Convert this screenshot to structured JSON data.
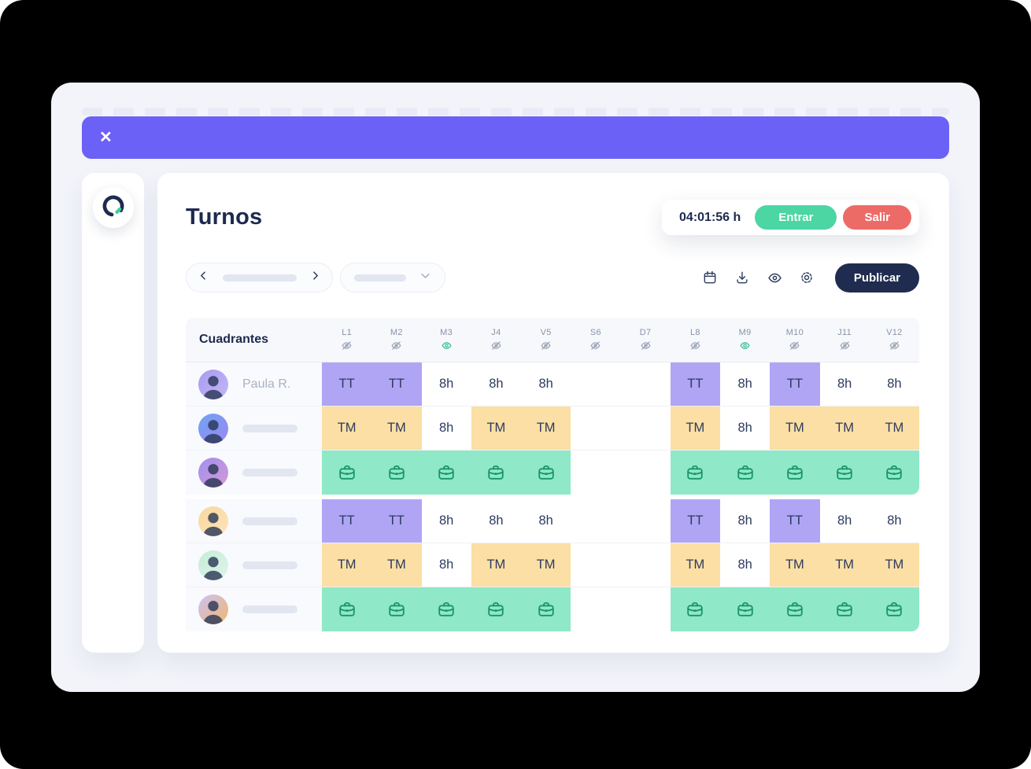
{
  "topbar": {
    "close_icon": "✕"
  },
  "sidebar": {
    "logo_icon": "brand-ring-icon"
  },
  "page": {
    "title": "Turnos"
  },
  "time_tracker": {
    "time": "04:01:56 h",
    "clock_in_label": "Entrar",
    "clock_out_label": "Salir"
  },
  "toolbar": {
    "publish_label": "Publicar",
    "icons": [
      "calendar-icon",
      "download-icon",
      "eye-icon",
      "settings-icon"
    ]
  },
  "table": {
    "corner_label": "Cuadrantes",
    "columns": [
      {
        "label": "L1",
        "eye": "hidden"
      },
      {
        "label": "M2",
        "eye": "hidden"
      },
      {
        "label": "M3",
        "eye": "visible"
      },
      {
        "label": "J4",
        "eye": "hidden"
      },
      {
        "label": "V5",
        "eye": "hidden"
      },
      {
        "label": "S6",
        "eye": "hidden"
      },
      {
        "label": "D7",
        "eye": "hidden"
      },
      {
        "label": "L8",
        "eye": "hidden"
      },
      {
        "label": "M9",
        "eye": "visible"
      },
      {
        "label": "M10",
        "eye": "hidden"
      },
      {
        "label": "J11",
        "eye": "hidden"
      },
      {
        "label": "V12",
        "eye": "hidden"
      }
    ],
    "rows": [
      {
        "name": "Paula R.",
        "name_skeleton": false,
        "avatar_bg": "#a89bf0",
        "avatar_bg2": "#c2b6f7",
        "group_end": false,
        "cells": [
          "TT",
          "TT",
          "8h",
          "8h",
          "8h",
          "",
          "",
          "TT",
          "8h",
          "TT",
          "8h",
          "8h"
        ]
      },
      {
        "name": "",
        "name_skeleton": true,
        "avatar_bg": "#6fa3f2",
        "avatar_bg2": "#9b87f2",
        "group_end": false,
        "cells": [
          "TM",
          "TM",
          "8h",
          "TM",
          "TM",
          "",
          "",
          "TM",
          "8h",
          "TM",
          "TM",
          "TM"
        ]
      },
      {
        "name": "",
        "name_skeleton": true,
        "avatar_bg": "#a28ff0",
        "avatar_bg2": "#d29ad4",
        "group_end": true,
        "cells": [
          "WORK",
          "WORK",
          "WORK",
          "WORK",
          "WORK",
          "",
          "",
          "WORK",
          "WORK",
          "WORK",
          "WORK",
          "WORK"
        ]
      },
      {
        "name": "",
        "name_skeleton": true,
        "avatar_bg": "#f9d79f",
        "avatar_bg2": "#fce4ba",
        "group_end": false,
        "cells": [
          "TT",
          "TT",
          "8h",
          "8h",
          "8h",
          "",
          "",
          "TT",
          "8h",
          "TT",
          "8h",
          "8h"
        ]
      },
      {
        "name": "",
        "name_skeleton": true,
        "avatar_bg": "#c4ebd8",
        "avatar_bg2": "#e0f5ea",
        "group_end": false,
        "cells": [
          "TM",
          "TM",
          "8h",
          "TM",
          "TM",
          "",
          "",
          "TM",
          "8h",
          "TM",
          "TM",
          "TM"
        ]
      },
      {
        "name": "",
        "name_skeleton": true,
        "avatar_bg": "#cbc2f6",
        "avatar_bg2": "#f2b66e",
        "group_end": true,
        "cells": [
          "WORK",
          "WORK",
          "WORK",
          "WORK",
          "WORK",
          "",
          "",
          "WORK",
          "WORK",
          "WORK",
          "WORK",
          "WORK"
        ]
      }
    ]
  },
  "colors": {
    "topbar_purple": "#6b61f6",
    "cell_purple": "#b0a5f5",
    "cell_orange": "#fcdfa4",
    "cell_green": "#8fe8c7",
    "briefcase_green": "#17946b",
    "clock_in_green": "#4bd6a4",
    "clock_out_red": "#ed6b66",
    "publish_navy": "#1f2c50",
    "eye_visible_green": "#38c596",
    "eye_hidden_gray": "#9aa3b5"
  }
}
